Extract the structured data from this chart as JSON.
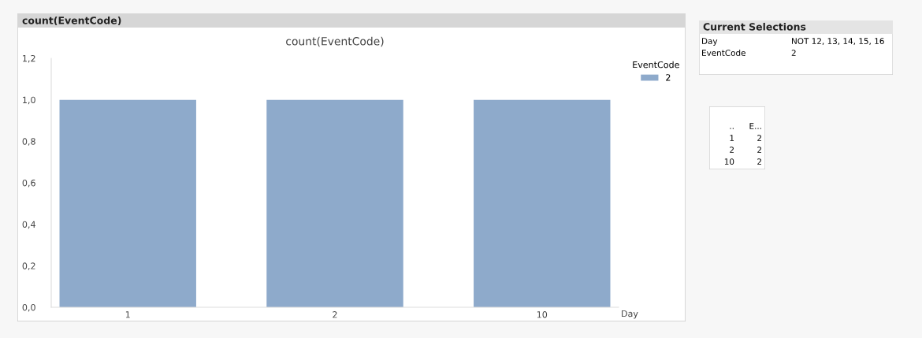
{
  "chart_data": [
    {
      "type": "bar",
      "title": "count(EventCode)",
      "annotations": [
        "count(EventCode)"
      ],
      "categories": [
        "1",
        "2",
        "10"
      ],
      "xlabel": "Day",
      "legend_title": "EventCode",
      "legend": "top right",
      "series": [
        {
          "name": "2",
          "color": "#8eaacb",
          "values": [
            1.0,
            1.0,
            1.0
          ]
        }
      ],
      "ylim": [
        0,
        1.2
      ],
      "yticks": [
        {
          "value": 0,
          "label": "0,0"
        },
        {
          "value": 0.2,
          "label": "0,2"
        },
        {
          "value": 0.4,
          "label": "0,4"
        },
        {
          "value": 0.6,
          "label": "0,6"
        },
        {
          "value": 0.8,
          "label": "0,8"
        },
        {
          "value": 1.0,
          "label": "1,0"
        },
        {
          "value": 1.2,
          "label": "1,2"
        }
      ]
    },
    {
      "type": "other",
      "title": "Current Selections",
      "annotations": [
        "Day",
        "NOT 12, 13, 14, 15, 16",
        "EventCode",
        "2"
      ]
    },
    {
      "type": "other",
      "annotations": [
        "..",
        "E...",
        "1",
        "2",
        "2",
        "2",
        "10",
        "2"
      ]
    }
  ]
}
